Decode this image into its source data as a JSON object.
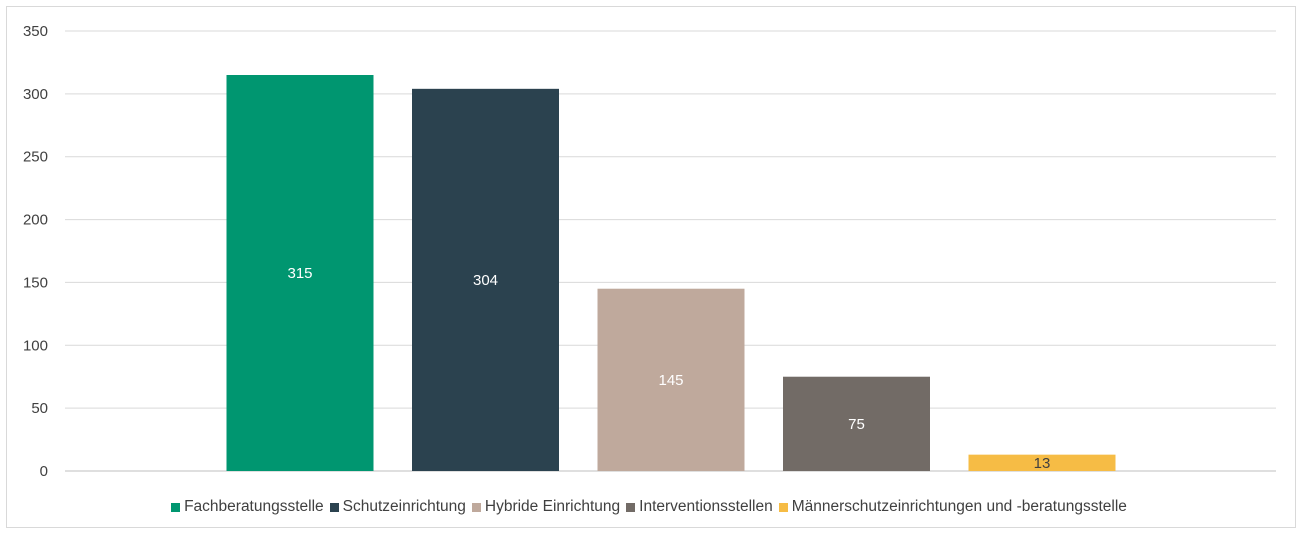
{
  "chart_data": {
    "type": "bar",
    "title": "",
    "xlabel": "",
    "ylabel": "",
    "ylim": [
      0,
      350
    ],
    "yticks": [
      0,
      50,
      100,
      150,
      200,
      250,
      300,
      350
    ],
    "grid": true,
    "legend_position": "bottom",
    "series": [
      {
        "name": "Fachberatungsstelle",
        "value": 315,
        "color": "#009670",
        "label_color": "#ffffff"
      },
      {
        "name": "Schutzeinrichtung",
        "value": 304,
        "color": "#2b424f",
        "label_color": "#ffffff"
      },
      {
        "name": "Hybride Einrichtung",
        "value": 145,
        "color": "#bfa99c",
        "label_color": "#ffffff"
      },
      {
        "name": "Interventionsstellen",
        "value": 75,
        "color": "#726b66",
        "label_color": "#ffffff"
      },
      {
        "name": "Männerschutzeinrichtungen und -beratungsstelle",
        "value": 13,
        "color": "#f6bc45",
        "label_color": "#404040"
      }
    ]
  }
}
